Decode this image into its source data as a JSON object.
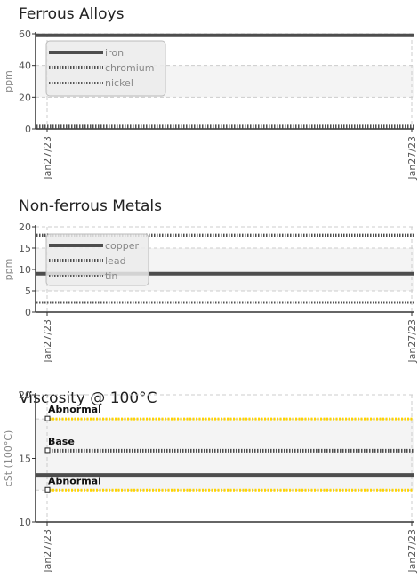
{
  "colors": {
    "series_dark": "#4d4d4d",
    "axis": "#333333",
    "grid": "#cccccc",
    "band": "#f4f4f4",
    "limit_yellow": "#ffd400",
    "label_gray": "#888888"
  },
  "chart_data": [
    {
      "type": "line",
      "title": "Ferrous Alloys",
      "ylabel": "ppm",
      "ylim": [
        0,
        60
      ],
      "yticks": [
        0,
        20,
        40,
        60
      ],
      "x": [
        "Jan27/23",
        "Jan27/23"
      ],
      "band": [
        20,
        40
      ],
      "legend": {
        "placement": "top-left",
        "entries": [
          "iron",
          "chromium",
          "nickel"
        ]
      },
      "series": [
        {
          "name": "iron",
          "style": "solid",
          "values": [
            59,
            59
          ]
        },
        {
          "name": "chromium",
          "style": "dotted",
          "values": [
            1.5,
            1.5
          ]
        },
        {
          "name": "nickel",
          "style": "dotted-light",
          "values": [
            1,
            1
          ]
        }
      ]
    },
    {
      "type": "line",
      "title": "Non-ferrous Metals",
      "ylabel": "ppm",
      "ylim": [
        0,
        20
      ],
      "yticks": [
        0,
        5,
        10,
        15,
        20
      ],
      "x": [
        "Jan27/23",
        "Jan27/23"
      ],
      "band": [
        5,
        15
      ],
      "legend": {
        "placement": "top-left",
        "entries": [
          "copper",
          "lead",
          "tin"
        ]
      },
      "series": [
        {
          "name": "copper",
          "style": "solid",
          "values": [
            9,
            9
          ]
        },
        {
          "name": "lead",
          "style": "dotted",
          "values": [
            18,
            18
          ]
        },
        {
          "name": "tin",
          "style": "dotted-light",
          "values": [
            2.2,
            2.2
          ]
        }
      ]
    },
    {
      "type": "line",
      "title": "Viscosity @ 100°C",
      "ylabel": "cSt (100°C)",
      "ylim": [
        10,
        20
      ],
      "yticks": [
        10,
        15,
        20
      ],
      "x": [
        "Jan27/23",
        "Jan27/23"
      ],
      "band": [
        12.5,
        18.1
      ],
      "limits": [
        {
          "label": "Abnormal",
          "value": 18.1,
          "style": "yellow"
        },
        {
          "label": "Base",
          "value": 15.6,
          "style": "dotted"
        },
        {
          "label": "Abnormal",
          "value": 12.5,
          "style": "yellow"
        }
      ],
      "series": [
        {
          "style": "solid",
          "values": [
            13.7,
            13.7
          ]
        }
      ]
    }
  ]
}
